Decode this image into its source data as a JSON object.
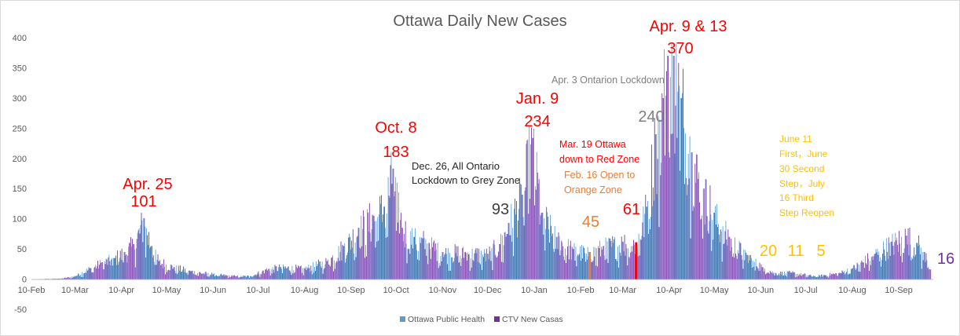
{
  "chart_data": {
    "type": "bar",
    "title": "Ottawa Daily New Cases",
    "ylim": [
      -50,
      400
    ],
    "y_ticks": [
      400,
      350,
      300,
      250,
      200,
      150,
      100,
      50,
      0,
      -50
    ],
    "x_start": "2020-02-10",
    "x_end": "2021-10-03",
    "x_ticks": [
      {
        "date": "2020-02-10",
        "label": "10-Feb"
      },
      {
        "date": "2020-03-10",
        "label": "10-Mar"
      },
      {
        "date": "2020-04-10",
        "label": "10-Apr"
      },
      {
        "date": "2020-05-10",
        "label": "10-May"
      },
      {
        "date": "2020-06-10",
        "label": "10-Jun"
      },
      {
        "date": "2020-07-10",
        "label": "10-Jul"
      },
      {
        "date": "2020-08-10",
        "label": "10-Aug"
      },
      {
        "date": "2020-09-10",
        "label": "10-Sep"
      },
      {
        "date": "2020-10-10",
        "label": "10-Oct"
      },
      {
        "date": "2020-11-10",
        "label": "10-Nov"
      },
      {
        "date": "2020-12-10",
        "label": "10-Dec"
      },
      {
        "date": "2021-01-10",
        "label": "10-Jan"
      },
      {
        "date": "2021-02-10",
        "label": "10-Feb"
      },
      {
        "date": "2021-03-10",
        "label": "10-Mar"
      },
      {
        "date": "2021-04-10",
        "label": "10-Apr"
      },
      {
        "date": "2021-05-10",
        "label": "10-May"
      },
      {
        "date": "2021-06-10",
        "label": "10-Jun"
      },
      {
        "date": "2021-07-10",
        "label": "10-Jul"
      },
      {
        "date": "2021-08-10",
        "label": "10-Aug"
      },
      {
        "date": "2021-09-10",
        "label": "10-Sep"
      }
    ],
    "series": [
      {
        "name": "Ottawa Public Health",
        "color": "#5b9bd5"
      },
      {
        "name": "CTV New Casas",
        "color": "#7030a0"
      }
    ],
    "daily_trend": [
      {
        "date": "2020-02-10",
        "value": 0
      },
      {
        "date": "2020-03-01",
        "value": 1
      },
      {
        "date": "2020-03-10",
        "value": 5
      },
      {
        "date": "2020-03-20",
        "value": 18
      },
      {
        "date": "2020-03-28",
        "value": 28
      },
      {
        "date": "2020-04-05",
        "value": 35
      },
      {
        "date": "2020-04-12",
        "value": 45
      },
      {
        "date": "2020-04-18",
        "value": 58
      },
      {
        "date": "2020-04-25",
        "value": 101
      },
      {
        "date": "2020-04-30",
        "value": 55
      },
      {
        "date": "2020-05-05",
        "value": 30
      },
      {
        "date": "2020-05-15",
        "value": 20
      },
      {
        "date": "2020-05-25",
        "value": 14
      },
      {
        "date": "2020-06-10",
        "value": 8
      },
      {
        "date": "2020-06-25",
        "value": 5
      },
      {
        "date": "2020-07-05",
        "value": 5
      },
      {
        "date": "2020-07-15",
        "value": 16
      },
      {
        "date": "2020-07-25",
        "value": 20
      },
      {
        "date": "2020-08-10",
        "value": 18
      },
      {
        "date": "2020-08-25",
        "value": 30
      },
      {
        "date": "2020-09-05",
        "value": 55
      },
      {
        "date": "2020-09-15",
        "value": 85
      },
      {
        "date": "2020-09-25",
        "value": 105
      },
      {
        "date": "2020-10-02",
        "value": 120
      },
      {
        "date": "2020-10-08",
        "value": 183
      },
      {
        "date": "2020-10-14",
        "value": 85
      },
      {
        "date": "2020-10-22",
        "value": 70
      },
      {
        "date": "2020-11-01",
        "value": 60
      },
      {
        "date": "2020-11-10",
        "value": 45
      },
      {
        "date": "2020-11-25",
        "value": 45
      },
      {
        "date": "2020-12-10",
        "value": 42
      },
      {
        "date": "2020-12-18",
        "value": 58
      },
      {
        "date": "2020-12-24",
        "value": 93
      },
      {
        "date": "2021-01-02",
        "value": 140
      },
      {
        "date": "2021-01-09",
        "value": 234
      },
      {
        "date": "2021-01-15",
        "value": 110
      },
      {
        "date": "2021-01-25",
        "value": 70
      },
      {
        "date": "2021-02-05",
        "value": 50
      },
      {
        "date": "2021-02-16",
        "value": 45
      },
      {
        "date": "2021-02-25",
        "value": 55
      },
      {
        "date": "2021-03-10",
        "value": 62
      },
      {
        "date": "2021-03-19",
        "value": 61
      },
      {
        "date": "2021-03-26",
        "value": 120
      },
      {
        "date": "2021-04-01",
        "value": 240
      },
      {
        "date": "2021-04-06",
        "value": 300
      },
      {
        "date": "2021-04-09",
        "value": 370
      },
      {
        "date": "2021-04-13",
        "value": 370
      },
      {
        "date": "2021-04-18",
        "value": 300
      },
      {
        "date": "2021-04-25",
        "value": 210
      },
      {
        "date": "2021-05-03",
        "value": 150
      },
      {
        "date": "2021-05-10",
        "value": 110
      },
      {
        "date": "2021-05-20",
        "value": 70
      },
      {
        "date": "2021-06-01",
        "value": 40
      },
      {
        "date": "2021-06-11",
        "value": 20
      },
      {
        "date": "2021-06-20",
        "value": 10
      },
      {
        "date": "2021-06-30",
        "value": 11
      },
      {
        "date": "2021-07-16",
        "value": 5
      },
      {
        "date": "2021-08-01",
        "value": 10
      },
      {
        "date": "2021-08-10",
        "value": 18
      },
      {
        "date": "2021-08-25",
        "value": 42
      },
      {
        "date": "2021-09-05",
        "value": 62
      },
      {
        "date": "2021-09-15",
        "value": 72
      },
      {
        "date": "2021-09-22",
        "value": 60
      },
      {
        "date": "2021-09-27",
        "value": 45
      },
      {
        "date": "2021-10-01",
        "value": 16
      }
    ],
    "markers": [
      {
        "date": "2021-02-16",
        "value": 45,
        "color": "#ed7d31"
      },
      {
        "date": "2021-03-19",
        "value": 61,
        "color": "#ff0000"
      }
    ],
    "annotations": [
      {
        "text": "Apr. 25",
        "color": "#ff0000"
      },
      {
        "text": "101",
        "color": "#ff0000"
      },
      {
        "text": "Oct. 8",
        "color": "#ff0000"
      },
      {
        "text": "183",
        "color": "#ff0000"
      },
      {
        "text": "Dec. 26, All Ontario",
        "color": "#262626"
      },
      {
        "text": "Lockdown to Grey Zone",
        "color": "#262626"
      },
      {
        "text": "93",
        "color": "#404040"
      },
      {
        "text": "Jan. 9",
        "color": "#ff0000"
      },
      {
        "text": "234",
        "color": "#ff0000"
      },
      {
        "text": "Mar. 19 Ottawa",
        "color": "#ff0000"
      },
      {
        "text": "down to Red Zone",
        "color": "#ff0000"
      },
      {
        "text": "Feb. 16 Open to",
        "color": "#ed7d31"
      },
      {
        "text": "Orange Zone",
        "color": "#ed7d31"
      },
      {
        "text": "45",
        "color": "#ed7d31"
      },
      {
        "text": "61",
        "color": "#ff0000"
      },
      {
        "text": "240",
        "color": "#7f7f7f"
      },
      {
        "text": "Apr. 3 Ontarion Lockdown",
        "color": "#7f7f7f"
      },
      {
        "text": "Apr. 9 & 13",
        "color": "#ff0000"
      },
      {
        "text": "370",
        "color": "#ff0000"
      },
      {
        "text": "June 11",
        "color": "#ffc000"
      },
      {
        "text": "First，June",
        "color": "#ffc000"
      },
      {
        "text": "30 Second",
        "color": "#ffc000"
      },
      {
        "text": "Step，July",
        "color": "#ffc000"
      },
      {
        "text": "16 Third",
        "color": "#ffc000"
      },
      {
        "text": "Step Reopen",
        "color": "#ffc000"
      },
      {
        "text": "20",
        "color": "#ffc000"
      },
      {
        "text": "11",
        "color": "#ffc000"
      },
      {
        "text": "5",
        "color": "#ffc000"
      },
      {
        "text": "16",
        "color": "#7030a0"
      }
    ],
    "legend_position": "bottom",
    "grid": false
  }
}
